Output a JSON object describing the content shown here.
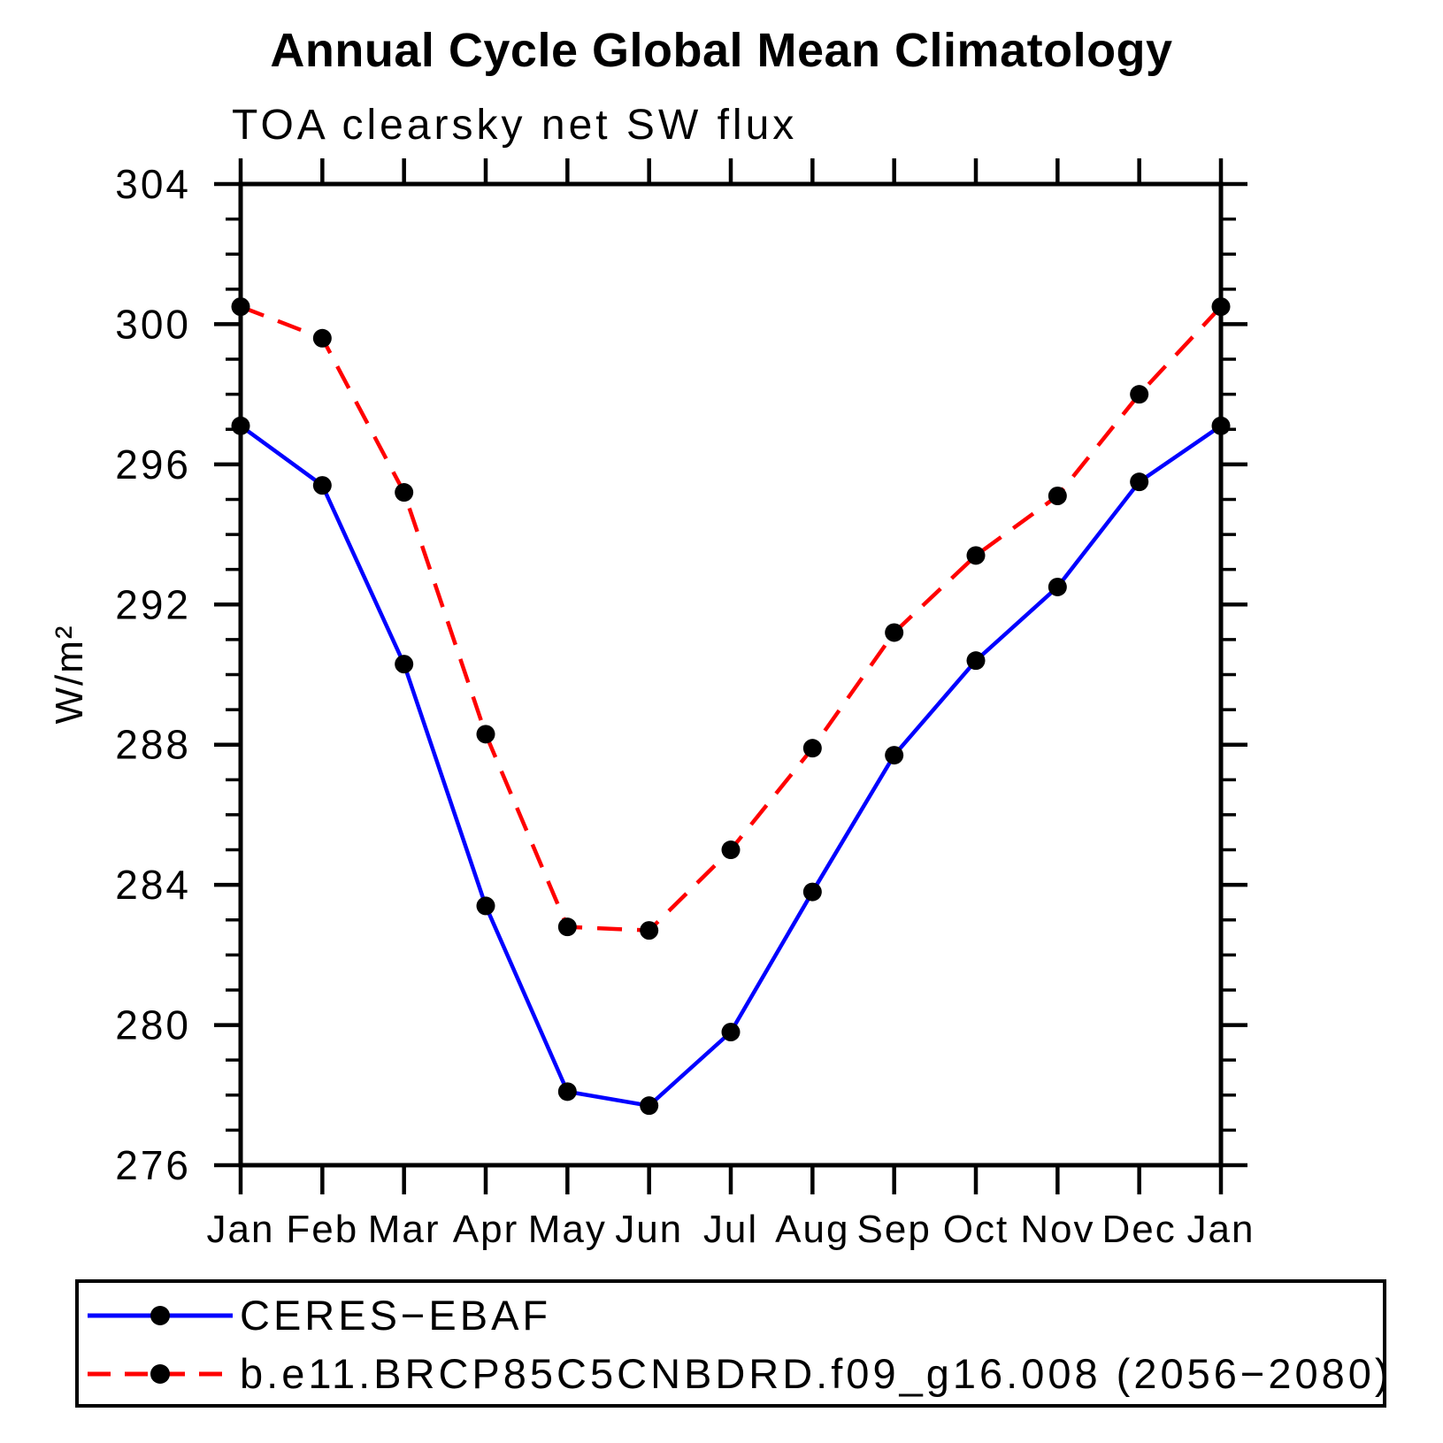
{
  "page": {
    "title": "Annual Cycle Global Mean Climatology",
    "subtitle": "TOA clearsky net SW flux"
  },
  "chart_data": {
    "type": "line",
    "title": "Annual Cycle Global Mean Climatology",
    "subtitle": "TOA clearsky net SW flux",
    "xlabel": "",
    "ylabel": "W/m²",
    "x_categories": [
      "Jan",
      "Feb",
      "Mar",
      "Apr",
      "May",
      "Jun",
      "Jul",
      "Aug",
      "Sep",
      "Oct",
      "Nov",
      "Dec",
      "Jan"
    ],
    "ylim": [
      276,
      304
    ],
    "ytick_labels": [
      "276",
      "280",
      "284",
      "288",
      "292",
      "296",
      "300",
      "304"
    ],
    "ytick_major_interval": 4,
    "ytick_minor_interval": 1,
    "grid": false,
    "legend_position": "bottom",
    "frame_color": "#000000",
    "marker_color": "#000000",
    "series": [
      {
        "name": "CERES−EBAF",
        "color": "#0000ff",
        "dash": "solid",
        "marker": "circle",
        "values": [
          297.1,
          295.4,
          290.3,
          283.4,
          278.1,
          277.7,
          279.8,
          283.8,
          287.7,
          290.4,
          292.5,
          295.5,
          297.1
        ]
      },
      {
        "name": "b.e11.BRCP85C5CNBDRD.f09_g16.008 (2056−2080)",
        "color": "#ff0000",
        "dash": "dashed",
        "marker": "circle",
        "values": [
          300.5,
          299.6,
          295.2,
          288.3,
          282.8,
          282.7,
          285.0,
          287.9,
          291.2,
          293.4,
          295.1,
          298.0,
          300.5
        ]
      }
    ]
  }
}
